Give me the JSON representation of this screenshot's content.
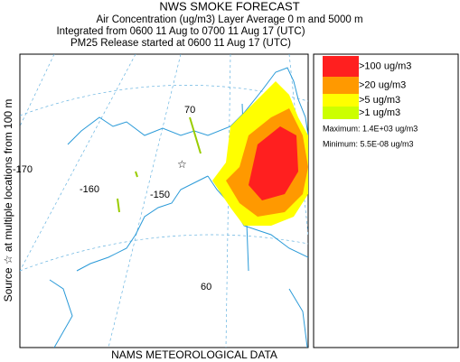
{
  "header": {
    "title": "NWS SMOKE FORECAST",
    "lines": [
      "Air Concentration (ug/m3) Layer Average    0 m and  5000 m",
      "Integrated from 0600 11 Aug to 0700 11 Aug 17 (UTC)",
      "PM25 Release started at 0600 11 Aug 17 (UTC)"
    ]
  },
  "side_label": "Source ☆  at multiple locations   from   100 m",
  "footer": "NAMS METEOROLOGICAL DATA",
  "map_labels": [
    "-170",
    "-160",
    "-150",
    "70",
    "60"
  ],
  "legend": {
    "items": [
      {
        "label": ">100 ug/m3",
        "color": "#ff1f1f"
      },
      {
        "label": ">20 ug/m3",
        "color": "#ff9900"
      },
      {
        "label": ">5 ug/m3",
        "color": "#ffff00"
      },
      {
        "label": ">1 ug/m3",
        "color": "#ccff00"
      }
    ],
    "maximum": "Maximum: 1.4E+03 ug/m3",
    "minimum": "Minimum: 5.5E-08 ug/m3"
  }
}
